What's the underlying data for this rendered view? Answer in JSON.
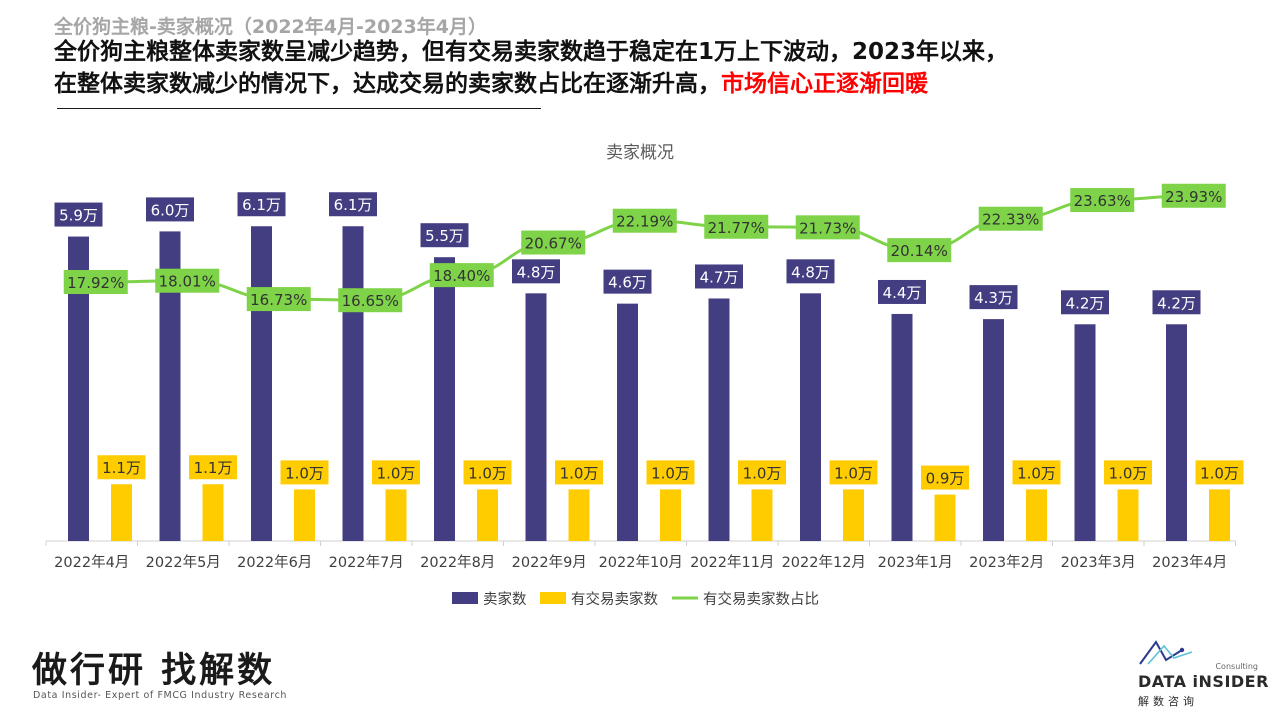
{
  "header": {
    "subtitle": "全价狗主粮-卖家概况（2022年4月-2023年4月）",
    "headline_line1": "全价狗主粮整体卖家数呈减少趋势，但有交易卖家数趋于稳定在1万上下波动，2023年以来，",
    "headline_line2": "在整体卖家数减少的情况下，达成交易的卖家数占比在逐渐升高，",
    "headline_highlight": "市场信心正逐渐回暖"
  },
  "colors": {
    "sellers": "#433e82",
    "trading_sellers": "#ffcc00",
    "ratio": "#7ed348",
    "highlight": "#ff0000"
  },
  "chart_data": {
    "type": "bar",
    "title": "卖家概况",
    "categories": [
      "2022年4月",
      "2022年5月",
      "2022年6月",
      "2022年7月",
      "2022年8月",
      "2022年9月",
      "2022年10月",
      "2022年11月",
      "2022年12月",
      "2023年1月",
      "2023年2月",
      "2023年3月",
      "2023年4月"
    ],
    "series": [
      {
        "name": "卖家数",
        "kind": "bar",
        "axis": "left",
        "unit": "万",
        "values": [
          5.9,
          6.0,
          6.1,
          6.1,
          5.5,
          4.8,
          4.6,
          4.7,
          4.8,
          4.4,
          4.3,
          4.2,
          4.2
        ],
        "labels": [
          "5.9万",
          "6.0万",
          "6.1万",
          "6.1万",
          "5.5万",
          "4.8万",
          "4.6万",
          "4.7万",
          "4.8万",
          "4.4万",
          "4.3万",
          "4.2万",
          "4.2万"
        ]
      },
      {
        "name": "有交易卖家数",
        "kind": "bar",
        "axis": "left",
        "unit": "万",
        "values": [
          1.1,
          1.1,
          1.0,
          1.0,
          1.0,
          1.0,
          1.0,
          1.0,
          1.0,
          0.9,
          1.0,
          1.0,
          1.0
        ],
        "labels": [
          "1.1万",
          "1.1万",
          "1.0万",
          "1.0万",
          "1.0万",
          "1.0万",
          "1.0万",
          "1.0万",
          "1.0万",
          "0.9万",
          "1.0万",
          "1.0万",
          "1.0万"
        ]
      },
      {
        "name": "有交易卖家数占比",
        "kind": "line",
        "axis": "right",
        "unit": "%",
        "values": [
          17.92,
          18.01,
          16.73,
          16.65,
          18.4,
          20.67,
          22.19,
          21.77,
          21.73,
          20.14,
          22.33,
          23.63,
          23.93
        ],
        "labels": [
          "17.92%",
          "18.01%",
          "16.73%",
          "16.65%",
          "18.40%",
          "20.67%",
          "22.19%",
          "21.77%",
          "21.73%",
          "20.14%",
          "22.33%",
          "23.63%",
          "23.93%"
        ]
      }
    ],
    "legend_position": "bottom",
    "grid": false
  },
  "footer": {
    "slogan": "做行研 找解数",
    "tagline": "Data Insider- Expert of FMCG Industry Research",
    "brand_name": "DATA iNSIDER",
    "brand_consulting": "Consulting",
    "brand_cn": "解数咨询"
  }
}
